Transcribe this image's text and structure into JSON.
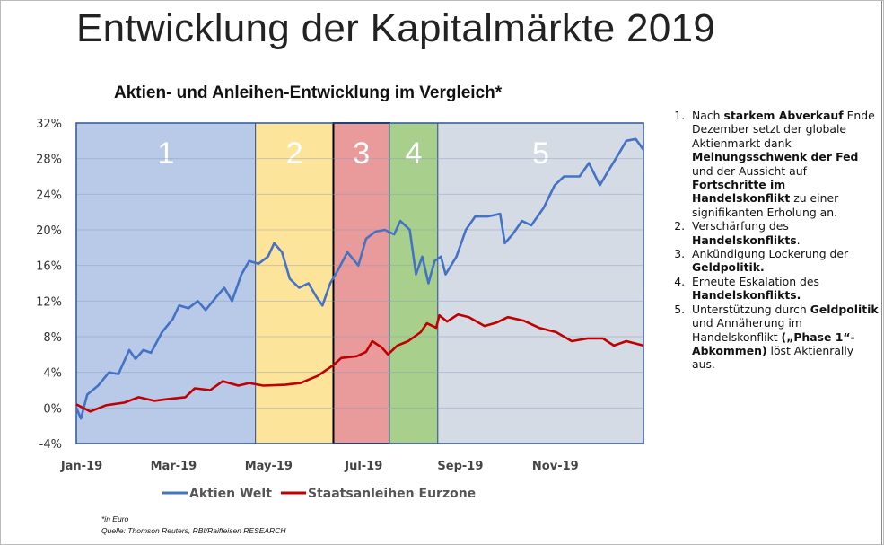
{
  "page_title": "Entwicklung der Kapitalmärkte 2019",
  "chart_data": {
    "type": "line",
    "title": "Aktien- und Anleihen-Entwicklung im Vergleich*",
    "ylim": [
      -4,
      32
    ],
    "yticks": [
      "-4%",
      "0%",
      "4%",
      "8%",
      "12%",
      "16%",
      "20%",
      "24%",
      "28%",
      "32%"
    ],
    "ytick_values": [
      -4,
      0,
      4,
      8,
      12,
      16,
      20,
      24,
      28,
      32
    ],
    "xlim": [
      "2019-01-01",
      "2019-12-31"
    ],
    "xticks": [
      {
        "date": "2019-01-01",
        "label": "Jan-19"
      },
      {
        "date": "2019-03-01",
        "label": "Mar-19"
      },
      {
        "date": "2019-05-01",
        "label": "May-19"
      },
      {
        "date": "2019-07-01",
        "label": "Jul-19"
      },
      {
        "date": "2019-09-01",
        "label": "Sep-19"
      },
      {
        "date": "2019-11-01",
        "label": "Nov-19"
      }
    ],
    "grid": true,
    "legend_placement": "bottom",
    "phases": [
      {
        "label": "1",
        "start": "2019-01-01",
        "end": "2019-04-26",
        "color": "#b9c9e8"
      },
      {
        "label": "2",
        "start": "2019-04-26",
        "end": "2019-06-15",
        "color": "#fde49b"
      },
      {
        "label": "3",
        "start": "2019-06-15",
        "end": "2019-07-21",
        "color": "#e99a9b"
      },
      {
        "label": "4",
        "start": "2019-07-21",
        "end": "2019-08-21",
        "color": "#a8cf8c"
      },
      {
        "label": "5",
        "start": "2019-08-21",
        "end": "2019-12-31",
        "color": "#d5dbe5"
      }
    ],
    "series": [
      {
        "name": "Aktien Welt",
        "color": "#4472c4",
        "points": [
          [
            "2019-01-01",
            0
          ],
          [
            "2019-01-04",
            -1.2
          ],
          [
            "2019-01-08",
            1.5
          ],
          [
            "2019-01-15",
            2.5
          ],
          [
            "2019-01-22",
            4
          ],
          [
            "2019-01-28",
            3.8
          ],
          [
            "2019-02-04",
            6.5
          ],
          [
            "2019-02-08",
            5.5
          ],
          [
            "2019-02-13",
            6.5
          ],
          [
            "2019-02-18",
            6.2
          ],
          [
            "2019-02-25",
            8.5
          ],
          [
            "2019-03-04",
            10
          ],
          [
            "2019-03-08",
            11.5
          ],
          [
            "2019-03-14",
            11.2
          ],
          [
            "2019-03-20",
            12
          ],
          [
            "2019-03-25",
            11
          ],
          [
            "2019-04-01",
            12.5
          ],
          [
            "2019-04-06",
            13.5
          ],
          [
            "2019-04-11",
            12
          ],
          [
            "2019-04-17",
            15
          ],
          [
            "2019-04-22",
            16.5
          ],
          [
            "2019-04-28",
            16.2
          ],
          [
            "2019-05-04",
            17
          ],
          [
            "2019-05-08",
            18.5
          ],
          [
            "2019-05-13",
            17.5
          ],
          [
            "2019-05-18",
            14.5
          ],
          [
            "2019-05-24",
            13.5
          ],
          [
            "2019-05-30",
            14
          ],
          [
            "2019-06-04",
            12.5
          ],
          [
            "2019-06-08",
            11.5
          ],
          [
            "2019-06-13",
            14
          ],
          [
            "2019-06-18",
            15.5
          ],
          [
            "2019-06-24",
            17.5
          ],
          [
            "2019-07-01",
            16
          ],
          [
            "2019-07-06",
            19
          ],
          [
            "2019-07-12",
            19.8
          ],
          [
            "2019-07-18",
            20
          ],
          [
            "2019-07-24",
            19.5
          ],
          [
            "2019-07-28",
            21
          ],
          [
            "2019-08-03",
            20
          ],
          [
            "2019-08-07",
            15
          ],
          [
            "2019-08-11",
            17
          ],
          [
            "2019-08-15",
            14
          ],
          [
            "2019-08-19",
            16.5
          ],
          [
            "2019-08-23",
            17
          ],
          [
            "2019-08-26",
            15
          ],
          [
            "2019-09-02",
            17
          ],
          [
            "2019-09-08",
            20
          ],
          [
            "2019-09-14",
            21.5
          ],
          [
            "2019-09-22",
            21.5
          ],
          [
            "2019-09-30",
            21.8
          ],
          [
            "2019-10-03",
            18.5
          ],
          [
            "2019-10-08",
            19.5
          ],
          [
            "2019-10-14",
            21
          ],
          [
            "2019-10-20",
            20.5
          ],
          [
            "2019-10-28",
            22.5
          ],
          [
            "2019-11-04",
            25
          ],
          [
            "2019-11-10",
            26
          ],
          [
            "2019-11-20",
            26
          ],
          [
            "2019-11-26",
            27.5
          ],
          [
            "2019-12-03",
            25
          ],
          [
            "2019-12-08",
            26.5
          ],
          [
            "2019-12-15",
            28.5
          ],
          [
            "2019-12-20",
            30
          ],
          [
            "2019-12-26",
            30.2
          ],
          [
            "2019-12-31",
            29
          ]
        ]
      },
      {
        "name": "Staatsanleihen Eurzone",
        "color": "#c00000",
        "points": [
          [
            "2019-01-01",
            0.4
          ],
          [
            "2019-01-10",
            -0.4
          ],
          [
            "2019-01-20",
            0.3
          ],
          [
            "2019-02-01",
            0.6
          ],
          [
            "2019-02-10",
            1.2
          ],
          [
            "2019-02-20",
            0.8
          ],
          [
            "2019-03-01",
            1.0
          ],
          [
            "2019-03-12",
            1.2
          ],
          [
            "2019-03-18",
            2.2
          ],
          [
            "2019-03-28",
            2.0
          ],
          [
            "2019-04-05",
            3.0
          ],
          [
            "2019-04-15",
            2.5
          ],
          [
            "2019-04-22",
            2.8
          ],
          [
            "2019-05-01",
            2.5
          ],
          [
            "2019-05-15",
            2.6
          ],
          [
            "2019-05-25",
            2.8
          ],
          [
            "2019-06-05",
            3.6
          ],
          [
            "2019-06-15",
            4.8
          ],
          [
            "2019-06-20",
            5.6
          ],
          [
            "2019-06-30",
            5.8
          ],
          [
            "2019-07-06",
            6.3
          ],
          [
            "2019-07-10",
            7.5
          ],
          [
            "2019-07-16",
            6.8
          ],
          [
            "2019-07-20",
            6.0
          ],
          [
            "2019-07-26",
            7.0
          ],
          [
            "2019-08-02",
            7.5
          ],
          [
            "2019-08-10",
            8.5
          ],
          [
            "2019-08-14",
            9.5
          ],
          [
            "2019-08-20",
            9.0
          ],
          [
            "2019-08-22",
            10.4
          ],
          [
            "2019-08-27",
            9.7
          ],
          [
            "2019-09-03",
            10.5
          ],
          [
            "2019-09-10",
            10.2
          ],
          [
            "2019-09-20",
            9.2
          ],
          [
            "2019-09-28",
            9.6
          ],
          [
            "2019-10-05",
            10.2
          ],
          [
            "2019-10-15",
            9.8
          ],
          [
            "2019-10-25",
            9.0
          ],
          [
            "2019-11-05",
            8.5
          ],
          [
            "2019-11-15",
            7.5
          ],
          [
            "2019-11-25",
            7.8
          ],
          [
            "2019-12-05",
            7.8
          ],
          [
            "2019-12-12",
            7.0
          ],
          [
            "2019-12-20",
            7.5
          ],
          [
            "2019-12-31",
            7.0
          ]
        ]
      }
    ]
  },
  "notes": [
    {
      "parts": [
        [
          "Nach ",
          false
        ],
        [
          "starkem Abverkauf",
          true
        ],
        [
          " Ende Dezember setzt der globale Aktienmarkt dank ",
          false
        ],
        [
          "Meinungsschwenk der Fed",
          true
        ],
        [
          " und der Aussicht auf ",
          false
        ],
        [
          "Fortschritte im Handelskonflikt",
          true
        ],
        [
          " zu einer signifikanten Erholung an.",
          false
        ]
      ]
    },
    {
      "parts": [
        [
          "Verschärfung des ",
          false
        ],
        [
          "Handelskonflikts",
          true
        ],
        [
          ".",
          false
        ]
      ]
    },
    {
      "parts": [
        [
          "Ankündigung Lockerung der ",
          false
        ],
        [
          "Geldpolitik.",
          true
        ]
      ]
    },
    {
      "parts": [
        [
          "Erneute Eskalation des ",
          false
        ],
        [
          "Handelskonflikts.",
          true
        ]
      ]
    },
    {
      "parts": [
        [
          "Unterstützung durch ",
          false
        ],
        [
          "Geldpolitik",
          true
        ],
        [
          " und Annäherung im Handelskonflikt ",
          false
        ],
        [
          "(„Phase 1“-Abkommen)",
          true
        ],
        [
          " löst Aktienrally aus.",
          false
        ]
      ]
    }
  ],
  "footnote": "*in Euro",
  "source": "Quelle: Thomson Reuters, RBI/Raiffeisen RESEARCH"
}
